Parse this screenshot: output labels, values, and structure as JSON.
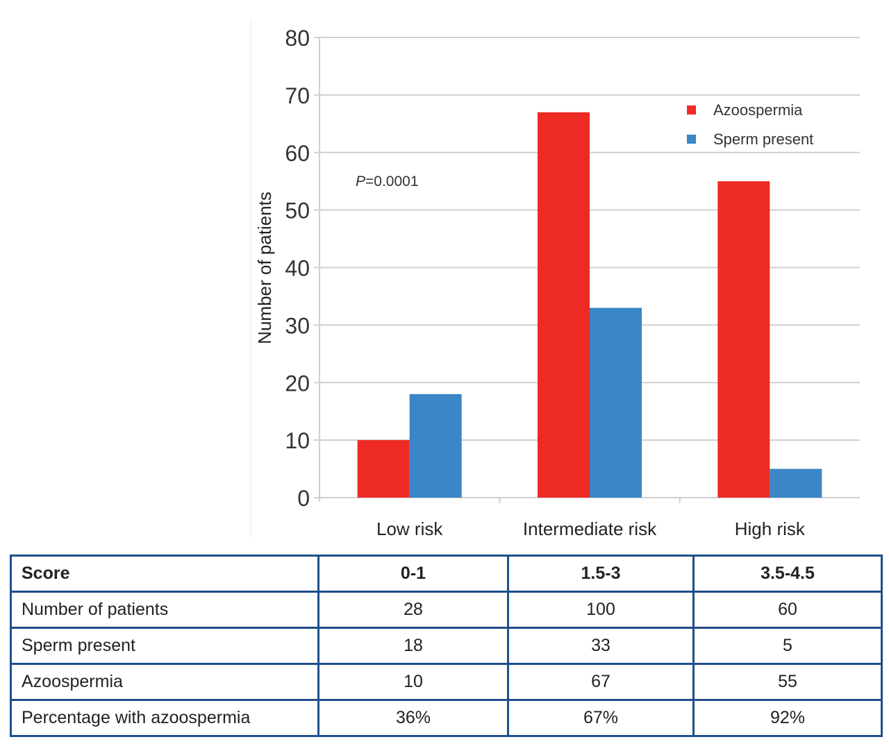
{
  "chart_data": {
    "type": "bar",
    "categories": [
      "Low risk",
      "Intermediate risk",
      "High risk"
    ],
    "series": [
      {
        "name": "Azoospermia",
        "values": [
          10,
          67,
          55
        ],
        "color": "#ee2a24"
      },
      {
        "name": "Sperm present",
        "values": [
          18,
          33,
          5
        ],
        "color": "#3a86c6"
      }
    ],
    "ylabel": "Number of patients",
    "xlabel": "",
    "ylim": [
      0,
      80
    ],
    "yticks": [
      0,
      10,
      20,
      30,
      40,
      50,
      60,
      70,
      80
    ],
    "grid": true,
    "legend_position": "top-right",
    "annotation": {
      "italic": "P",
      "text": "=0.0001"
    }
  },
  "table": {
    "header": [
      "Score",
      "0-1",
      "1.5-3",
      "3.5-4.5"
    ],
    "rows": [
      [
        "Number of patients",
        "28",
        "100",
        "60"
      ],
      [
        "Sperm present",
        "18",
        "33",
        "5"
      ],
      [
        "Azoospermia",
        "10",
        "67",
        "55"
      ],
      [
        "Percentage with azoospermia",
        "36%",
        "67%",
        "92%"
      ]
    ],
    "border_color": "#1e4e8c"
  }
}
